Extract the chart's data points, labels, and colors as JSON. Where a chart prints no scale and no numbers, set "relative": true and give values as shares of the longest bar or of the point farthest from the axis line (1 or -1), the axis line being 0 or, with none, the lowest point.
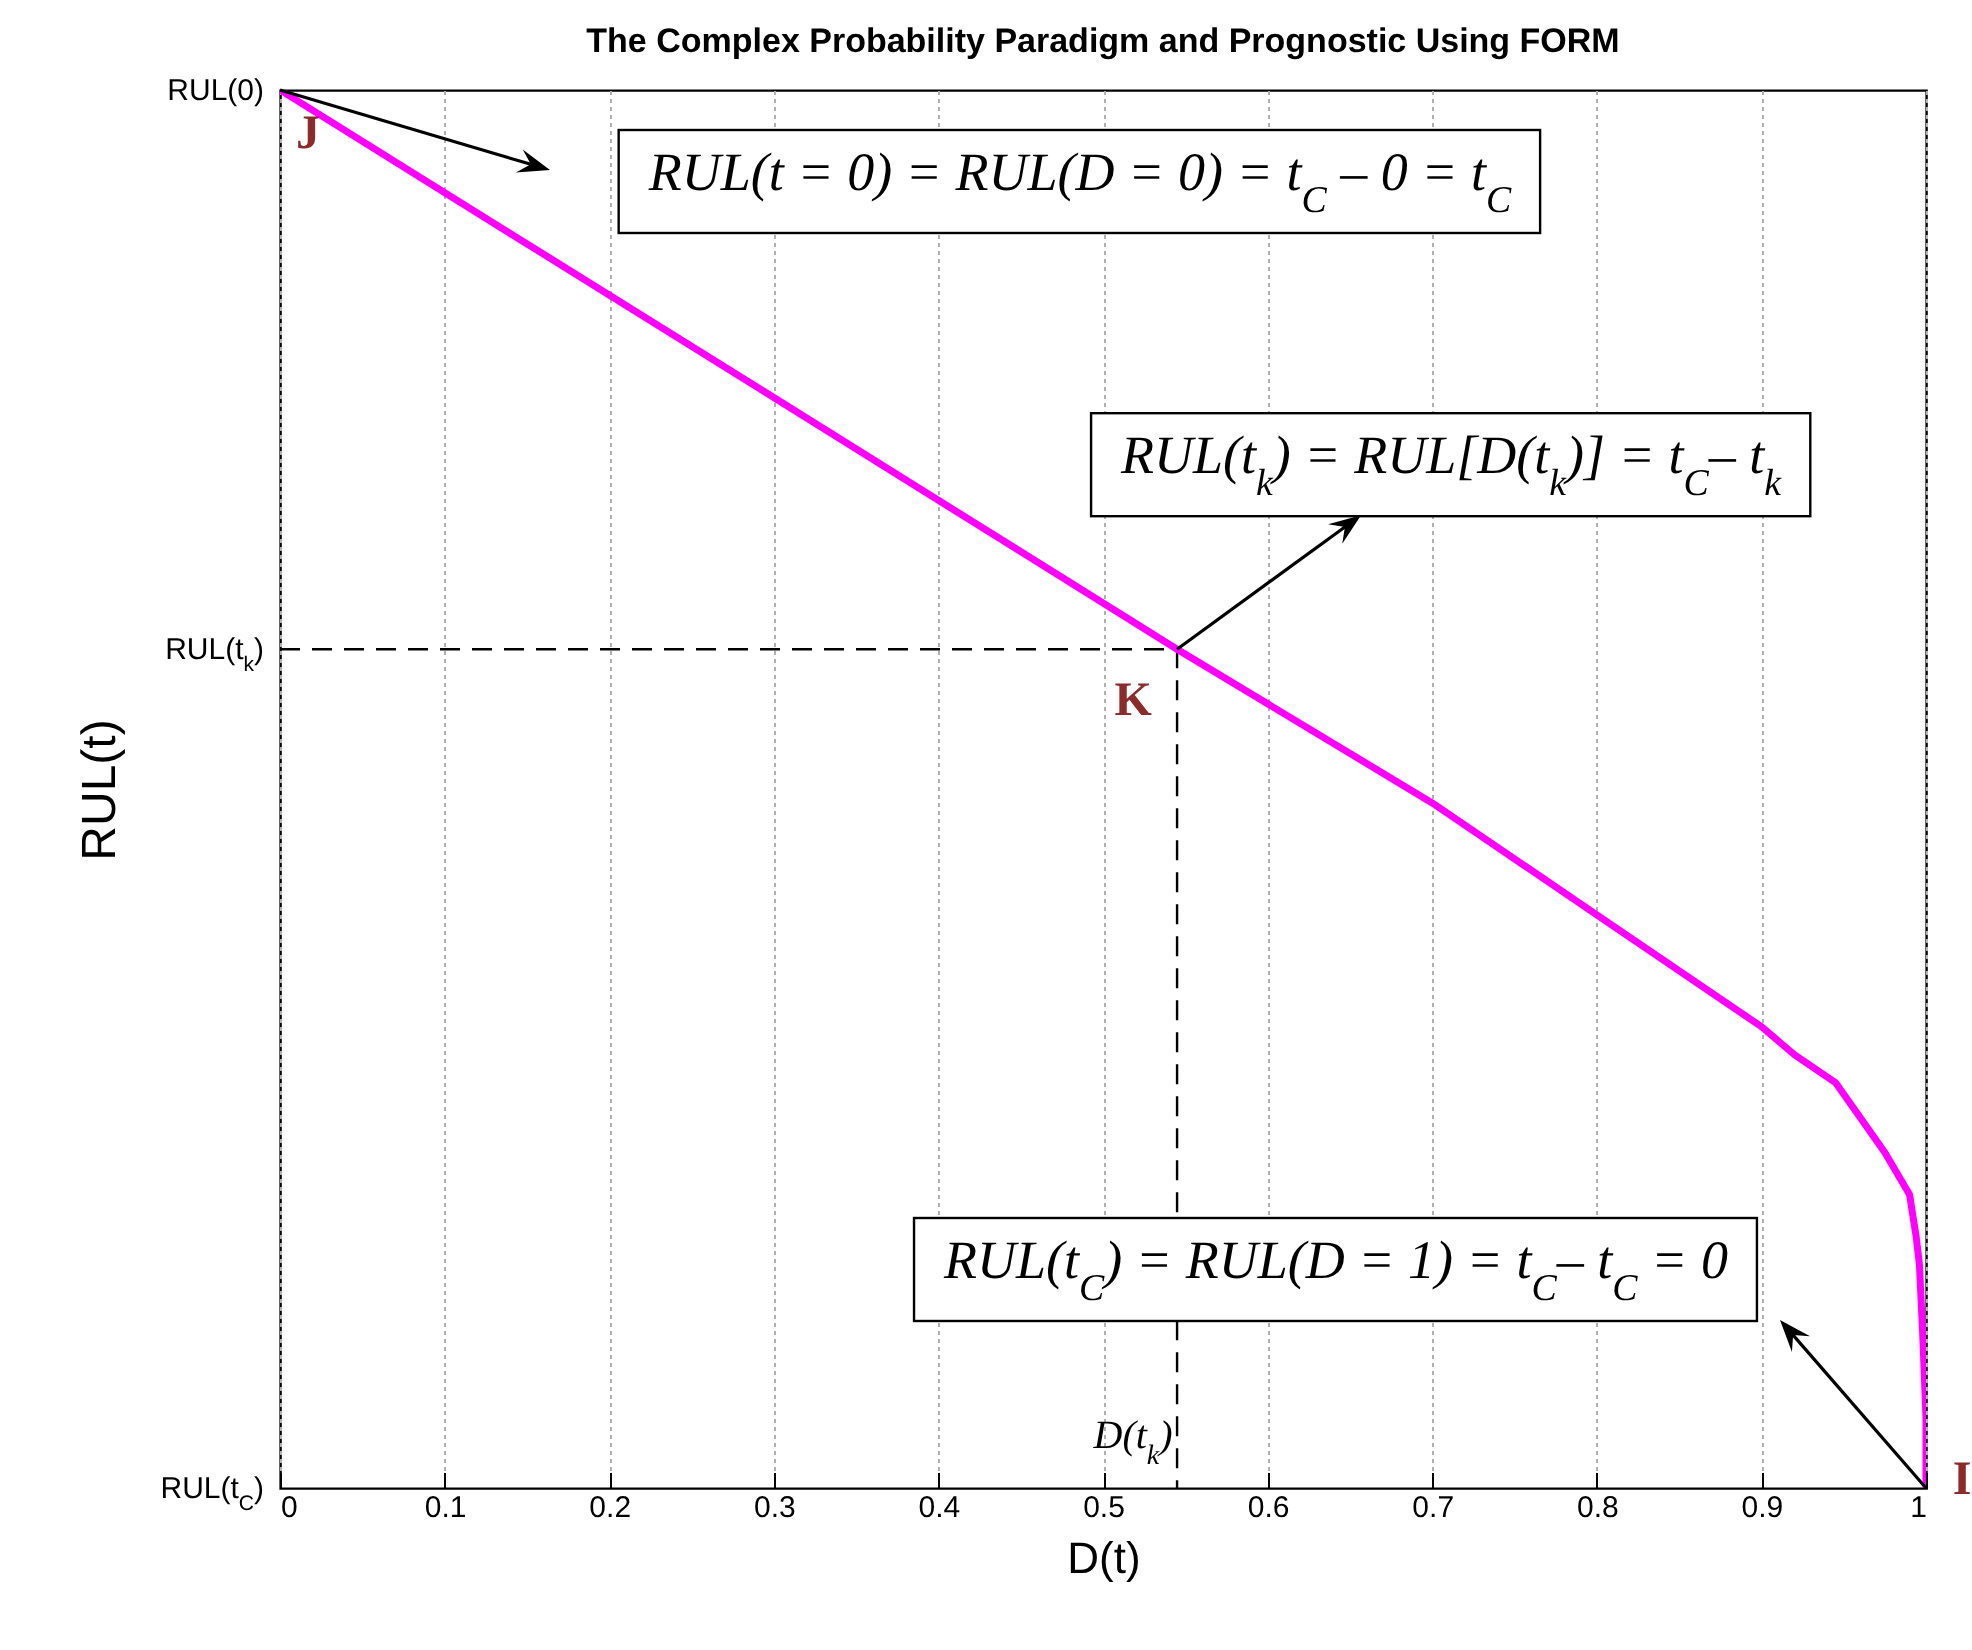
{
  "chart_data": {
    "type": "line",
    "title": "The Complex Probability Paradigm and Prognostic Using FORM",
    "xlabel": "D(t)",
    "ylabel": "RUL(t)",
    "xlim": [
      0,
      1
    ],
    "xticks": [
      0,
      0.1,
      0.2,
      0.3,
      0.4,
      0.5,
      0.6,
      0.7,
      0.8,
      0.9,
      1
    ],
    "relative": true,
    "grid": "x",
    "series": [
      {
        "color": "#ff00ff",
        "x": [
          0,
          0.3,
          0.545,
          0.7,
          0.8,
          0.9,
          0.92,
          0.945,
          0.96,
          0.975,
          0.985,
          0.99,
          0.994,
          0.996,
          0.998,
          0.999,
          1,
          1
        ],
        "values": [
          1,
          0.78,
          0.6,
          0.49,
          0.41,
          0.33,
          0.31,
          0.29,
          0.265,
          0.24,
          0.22,
          0.21,
          0.18,
          0.16,
          0.11,
          0.08,
          0.05,
          0
        ]
      },
      {
        "color": "#000000",
        "line_style": "dashed",
        "x": [
          0,
          0.545,
          0.545
        ],
        "values": [
          0.6,
          0.6,
          0
        ]
      }
    ],
    "annotations": [
      {
        "text": "J",
        "x": 0,
        "y": 1
      },
      {
        "text": "K",
        "x": 0.545,
        "y": 0.6
      },
      {
        "text": "I",
        "x": 1,
        "y": 0
      },
      "RUL(t = 0) = RUL(D = 0) = t$_{C}$ – 0 = t$_{C}$",
      {
        "text": "RUL(t$_{k}$) = RUL[D(t$_{k}$)] = t$_{C}$– t$_{k}$",
        "x": 0.545,
        "y": 0.6
      },
      {
        "text": "RUL(t$_{C}$) = RUL(D = 1) = t$_{C}$– t$_{C}$ = 0",
        "x": 1,
        "y": 0
      },
      {
        "text": "D(t$_{k}$)",
        "x": 0.545,
        "y": 0
      },
      {
        "text": "RUL(0)",
        "x": 0,
        "y": 1
      },
      {
        "text": "RUL(t$_{k}$)",
        "x": 0,
        "y": 0.6
      },
      "RUL(t$_{C}$)"
    ]
  }
}
